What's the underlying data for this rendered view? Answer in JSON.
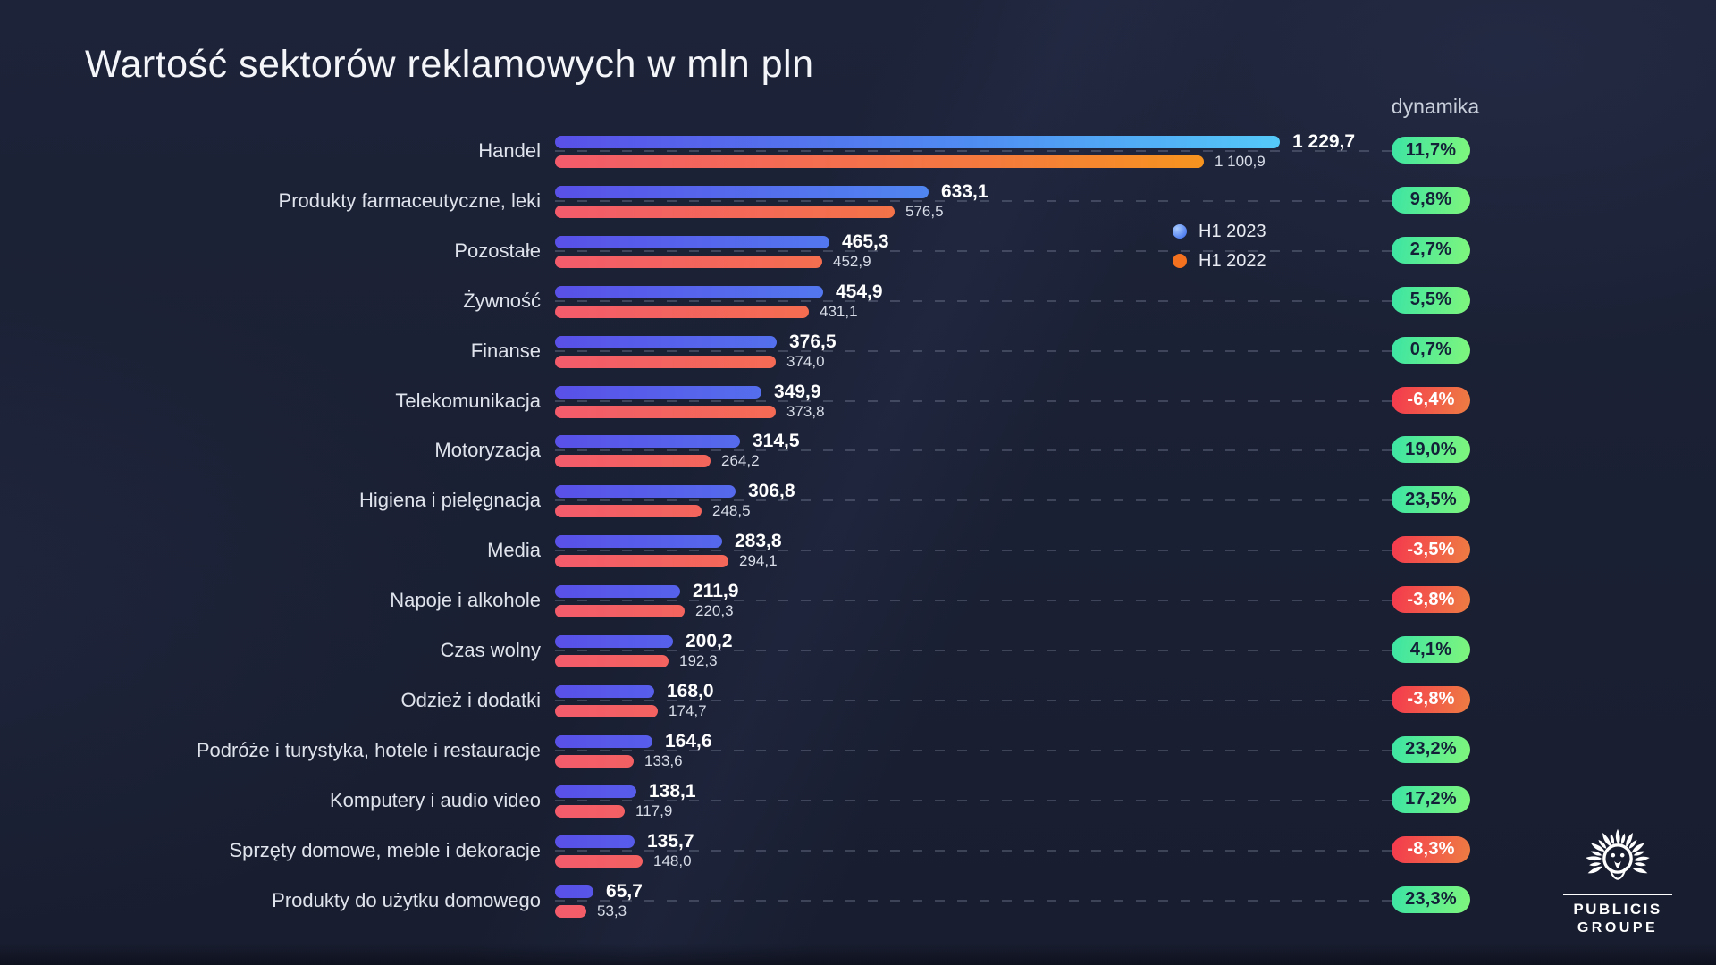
{
  "title": "Wartość sektorów reklamowych w mln pln",
  "dynamika_label": "dynamika",
  "legend": {
    "items": [
      {
        "label": "H1 2023",
        "color": "#5f8ef6"
      },
      {
        "label": "H1 2022",
        "color": "#f4711f"
      }
    ]
  },
  "logo": {
    "line1": "PUBLICIS",
    "line2": "GROUPE"
  },
  "colors": {
    "background": "#1a2034",
    "bar_2023_gradient": [
      "#5950e8",
      "#4f8df2",
      "#54c9f8"
    ],
    "bar_2022_gradient": [
      "#f35b6b",
      "#f4793f",
      "#f79d14"
    ],
    "badge_up_gradient": [
      "#3be4a4",
      "#80f67c"
    ],
    "badge_down_gradient": [
      "#f4394e",
      "#ee7d43"
    ],
    "badge_up_text": "#132038",
    "badge_down_text": "#ffffff"
  },
  "chart_data": {
    "type": "bar",
    "orientation": "horizontal",
    "title": "Wartość sektorów reklamowych w mln pln",
    "unit": "mln pln",
    "series": [
      "H1 2023",
      "H1 2022"
    ],
    "x_max": 1229.7,
    "legend_position": "right",
    "grid": "dashed-row-lines",
    "rows": [
      {
        "label": "Handel",
        "value_2023": 1229.7,
        "value_2022": 1100.9,
        "display_2023": "1 229,7",
        "display_2022": "1 100,9",
        "dynamika": "11,7%",
        "trend": "up"
      },
      {
        "label": "Produkty farmaceutyczne, leki",
        "value_2023": 633.1,
        "value_2022": 576.5,
        "display_2023": "633,1",
        "display_2022": "576,5",
        "dynamika": "9,8%",
        "trend": "up"
      },
      {
        "label": "Pozostałe",
        "value_2023": 465.3,
        "value_2022": 452.9,
        "display_2023": "465,3",
        "display_2022": "452,9",
        "dynamika": "2,7%",
        "trend": "up"
      },
      {
        "label": "Żywność",
        "value_2023": 454.9,
        "value_2022": 431.1,
        "display_2023": "454,9",
        "display_2022": "431,1",
        "dynamika": "5,5%",
        "trend": "up"
      },
      {
        "label": "Finanse",
        "value_2023": 376.5,
        "value_2022": 374.0,
        "display_2023": "376,5",
        "display_2022": "374,0",
        "dynamika": "0,7%",
        "trend": "up"
      },
      {
        "label": "Telekomunikacja",
        "value_2023": 349.9,
        "value_2022": 373.8,
        "display_2023": "349,9",
        "display_2022": "373,8",
        "dynamika": "-6,4%",
        "trend": "down"
      },
      {
        "label": "Motoryzacja",
        "value_2023": 314.5,
        "value_2022": 264.2,
        "display_2023": "314,5",
        "display_2022": "264,2",
        "dynamika": "19,0%",
        "trend": "up"
      },
      {
        "label": "Higiena i pielęgnacja",
        "value_2023": 306.8,
        "value_2022": 248.5,
        "display_2023": "306,8",
        "display_2022": "248,5",
        "dynamika": "23,5%",
        "trend": "up"
      },
      {
        "label": "Media",
        "value_2023": 283.8,
        "value_2022": 294.1,
        "display_2023": "283,8",
        "display_2022": "294,1",
        "dynamika": "-3,5%",
        "trend": "down"
      },
      {
        "label": "Napoje i alkohole",
        "value_2023": 211.9,
        "value_2022": 220.3,
        "display_2023": "211,9",
        "display_2022": "220,3",
        "dynamika": "-3,8%",
        "trend": "down"
      },
      {
        "label": "Czas wolny",
        "value_2023": 200.2,
        "value_2022": 192.3,
        "display_2023": "200,2",
        "display_2022": "192,3",
        "dynamika": "4,1%",
        "trend": "up"
      },
      {
        "label": "Odzież i dodatki",
        "value_2023": 168.0,
        "value_2022": 174.7,
        "display_2023": "168,0",
        "display_2022": "174,7",
        "dynamika": "-3,8%",
        "trend": "down"
      },
      {
        "label": "Podróże i turystyka, hotele i restauracje",
        "value_2023": 164.6,
        "value_2022": 133.6,
        "display_2023": "164,6",
        "display_2022": "133,6",
        "dynamika": "23,2%",
        "trend": "up"
      },
      {
        "label": "Komputery i audio video",
        "value_2023": 138.1,
        "value_2022": 117.9,
        "display_2023": "138,1",
        "display_2022": "117,9",
        "dynamika": "17,2%",
        "trend": "up"
      },
      {
        "label": "Sprzęty domowe, meble i dekoracje",
        "value_2023": 135.7,
        "value_2022": 148.0,
        "display_2023": "135,7",
        "display_2022": "148,0",
        "dynamika": "-8,3%",
        "trend": "down"
      },
      {
        "label": "Produkty do użytku domowego",
        "value_2023": 65.7,
        "value_2022": 53.3,
        "display_2023": "65,7",
        "display_2022": "53,3",
        "dynamika": "23,3%",
        "trend": "up"
      }
    ]
  }
}
